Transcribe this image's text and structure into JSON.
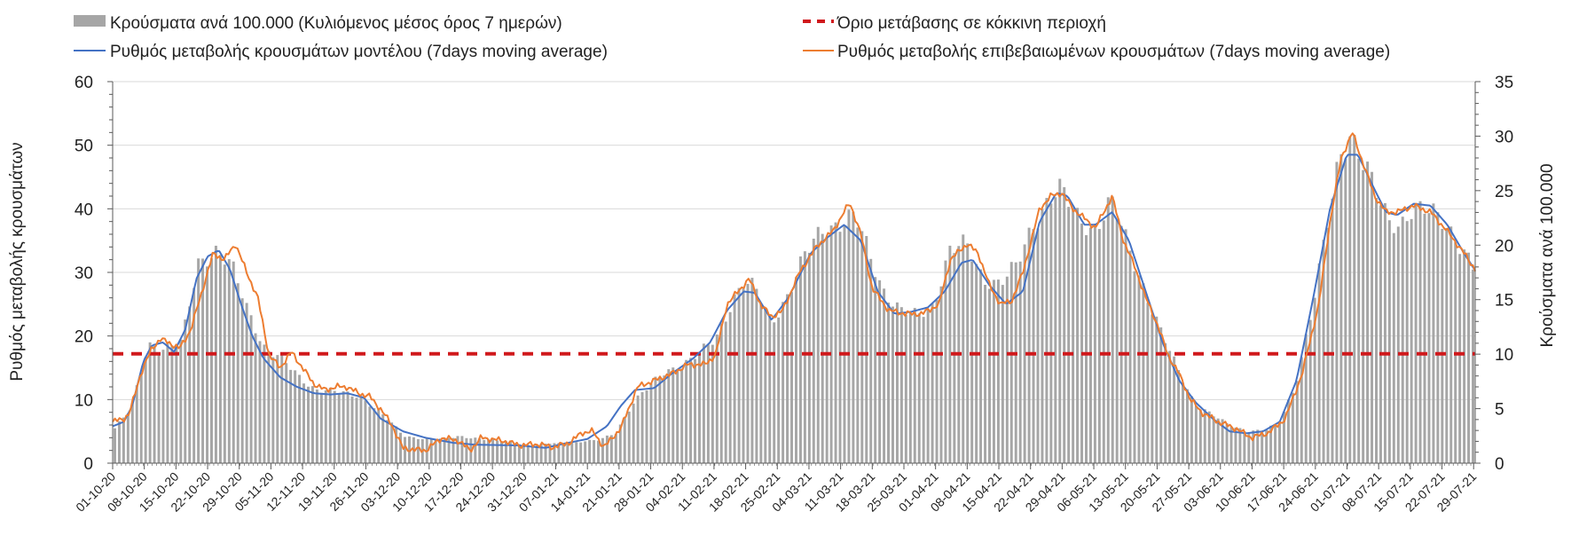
{
  "chart_data": {
    "type": "bar-line-combo",
    "title": "",
    "legend": [
      {
        "label": "Κρούσματα ανά 100.000 (Κυλιόμενος μέσος όρος 7 ημερών)",
        "kind": "bar",
        "color": "#a6a6a6"
      },
      {
        "label": "Όριο μετάβασης σε κόκκινη περιοχή",
        "kind": "dashed-line",
        "color": "#d0191c"
      },
      {
        "label": "Ρυθμός μεταβολής κρουσμάτων μοντέλου (7days moving average)",
        "kind": "line",
        "color": "#4472c4"
      },
      {
        "label": "Ρυθμός μεταβολής επιβεβαιωμένων κρουσμάτων (7days moving average)",
        "kind": "line",
        "color": "#ed7d31"
      }
    ],
    "y_left": {
      "title": "Ρυθμός μεταβολής κρουσμάτων",
      "ylim": [
        0,
        60
      ],
      "ticks": [
        "0",
        "10",
        "20",
        "30",
        "40",
        "50",
        "60"
      ]
    },
    "y_right": {
      "title": "Κρούσματα ανά 100.000",
      "ylim": [
        0,
        35
      ],
      "ticks": [
        "0",
        "5",
        "10",
        "15",
        "20",
        "25",
        "30",
        "35"
      ]
    },
    "x_tick_labels": [
      "01-10-20",
      "08-10-20",
      "15-10-20",
      "22-10-20",
      "29-10-20",
      "05-11-20",
      "12-11-20",
      "19-11-20",
      "26-11-20",
      "03-12-20",
      "10-12-20",
      "17-12-20",
      "24-12-20",
      "31-12-20",
      "07-01-21",
      "14-01-21",
      "21-01-21",
      "28-01-21",
      "04-02-21",
      "11-02-21",
      "18-02-21",
      "25-02-21",
      "04-03-21",
      "11-03-21",
      "18-03-21",
      "25-03-21",
      "01-04-21",
      "08-04-21",
      "15-04-21",
      "22-04-21",
      "29-04-21",
      "06-05-21",
      "13-05-21",
      "20-05-21",
      "27-05-21",
      "03-06-21",
      "10-06-21",
      "17-06-21",
      "24-06-21",
      "01-07-21",
      "08-07-21",
      "15-07-21",
      "22-07-21",
      "29-07-21"
    ],
    "days": 310,
    "red_threshold_left": 17.2,
    "model_rate_keypoints_left": [
      [
        0,
        5.8
      ],
      [
        4,
        6.5
      ],
      [
        7,
        9
      ],
      [
        11,
        16
      ],
      [
        14,
        18.5
      ],
      [
        18,
        19
      ],
      [
        22,
        17.5
      ],
      [
        26,
        21
      ],
      [
        30,
        29
      ],
      [
        34,
        32.5
      ],
      [
        38,
        33.5
      ],
      [
        42,
        30.5
      ],
      [
        46,
        25
      ],
      [
        50,
        20
      ],
      [
        54,
        16.5
      ],
      [
        60,
        13.5
      ],
      [
        66,
        12
      ],
      [
        72,
        11
      ],
      [
        78,
        10.8
      ],
      [
        84,
        11
      ],
      [
        90,
        10.3
      ],
      [
        96,
        7
      ],
      [
        104,
        5
      ],
      [
        112,
        4
      ],
      [
        122,
        3.2
      ],
      [
        130,
        2.9
      ],
      [
        145,
        2.8
      ],
      [
        155,
        2.4
      ],
      [
        162,
        3.1
      ],
      [
        170,
        3.8
      ],
      [
        177,
        5.8
      ],
      [
        182,
        9
      ],
      [
        187,
        11.5
      ],
      [
        194,
        11.8
      ],
      [
        200,
        14
      ],
      [
        208,
        16.5
      ],
      [
        214,
        19
      ],
      [
        220,
        24
      ],
      [
        226,
        27
      ],
      [
        230,
        26.8
      ],
      [
        236,
        22.5
      ],
      [
        242,
        26
      ],
      [
        250,
        33
      ],
      [
        256,
        35.5
      ],
      [
        262,
        37.5
      ],
      [
        268,
        35
      ],
      [
        274,
        27
      ],
      [
        280,
        23.5
      ],
      [
        286,
        23.8
      ],
      [
        292,
        24.5
      ],
      [
        298,
        27
      ],
      [
        304,
        31.5
      ],
      [
        308,
        32
      ],
      [
        314,
        28
      ],
      [
        320,
        25
      ],
      [
        326,
        27
      ],
      [
        332,
        38
      ],
      [
        338,
        42.5
      ],
      [
        342,
        42
      ],
      [
        348,
        37.5
      ],
      [
        352,
        37.5
      ],
      [
        358,
        39.5
      ],
      [
        364,
        35
      ],
      [
        370,
        27
      ],
      [
        376,
        19
      ],
      [
        382,
        13
      ],
      [
        388,
        9.5
      ],
      [
        394,
        7
      ],
      [
        400,
        5
      ],
      [
        406,
        4.7
      ],
      [
        412,
        5
      ],
      [
        418,
        6.5
      ],
      [
        424,
        13
      ],
      [
        430,
        26
      ],
      [
        436,
        40
      ],
      [
        442,
        48.5
      ],
      [
        446,
        48.5
      ],
      [
        452,
        43
      ],
      [
        456,
        39.5
      ],
      [
        460,
        39
      ],
      [
        466,
        40.8
      ],
      [
        472,
        40.5
      ],
      [
        478,
        37.5
      ],
      [
        484,
        33
      ],
      [
        488,
        30.3
      ]
    ],
    "confirmed_rate_keypoints_left": [
      [
        0,
        6.5
      ],
      [
        4,
        7
      ],
      [
        6,
        7.8
      ],
      [
        10,
        14
      ],
      [
        14,
        18
      ],
      [
        17,
        19.5
      ],
      [
        20,
        19
      ],
      [
        24,
        18
      ],
      [
        28,
        21
      ],
      [
        32,
        27
      ],
      [
        36,
        33
      ],
      [
        40,
        32
      ],
      [
        44,
        34.5
      ],
      [
        48,
        30
      ],
      [
        52,
        26
      ],
      [
        56,
        17
      ],
      [
        60,
        15
      ],
      [
        64,
        17.5
      ],
      [
        68,
        15
      ],
      [
        72,
        12.5
      ],
      [
        76,
        11.5
      ],
      [
        80,
        12
      ],
      [
        84,
        12
      ],
      [
        88,
        11
      ],
      [
        92,
        10.5
      ],
      [
        96,
        8.5
      ],
      [
        100,
        6
      ],
      [
        104,
        2.3
      ],
      [
        112,
        2
      ],
      [
        118,
        4
      ],
      [
        124,
        3.5
      ],
      [
        128,
        2
      ],
      [
        132,
        4
      ],
      [
        140,
        3.5
      ],
      [
        146,
        2.8
      ],
      [
        152,
        3
      ],
      [
        158,
        2.5
      ],
      [
        164,
        3.3
      ],
      [
        168,
        4.8
      ],
      [
        172,
        5
      ],
      [
        176,
        2.5
      ],
      [
        182,
        5.5
      ],
      [
        188,
        12
      ],
      [
        194,
        13
      ],
      [
        200,
        14
      ],
      [
        206,
        15.5
      ],
      [
        212,
        15.5
      ],
      [
        216,
        17
      ],
      [
        220,
        25
      ],
      [
        224,
        27
      ],
      [
        228,
        29
      ],
      [
        232,
        25
      ],
      [
        236,
        23
      ],
      [
        240,
        24
      ],
      [
        246,
        30
      ],
      [
        252,
        34
      ],
      [
        258,
        36.5
      ],
      [
        264,
        41
      ],
      [
        268,
        36
      ],
      [
        272,
        27.5
      ],
      [
        278,
        24
      ],
      [
        284,
        23.5
      ],
      [
        290,
        23.5
      ],
      [
        296,
        25
      ],
      [
        300,
        32
      ],
      [
        306,
        34.5
      ],
      [
        310,
        33
      ],
      [
        314,
        28
      ],
      [
        318,
        25
      ],
      [
        322,
        25.5
      ],
      [
        326,
        30
      ],
      [
        332,
        40
      ],
      [
        336,
        42
      ],
      [
        340,
        42.5
      ],
      [
        344,
        40
      ],
      [
        348,
        38.5
      ],
      [
        352,
        37
      ],
      [
        358,
        42
      ],
      [
        362,
        35
      ],
      [
        366,
        31
      ],
      [
        370,
        26
      ],
      [
        374,
        22
      ],
      [
        378,
        17
      ],
      [
        382,
        14
      ],
      [
        386,
        10
      ],
      [
        390,
        8
      ],
      [
        396,
        6.5
      ],
      [
        402,
        5.5
      ],
      [
        408,
        4
      ],
      [
        414,
        4.8
      ],
      [
        420,
        7
      ],
      [
        426,
        14
      ],
      [
        432,
        25
      ],
      [
        436,
        38
      ],
      [
        440,
        48
      ],
      [
        444,
        52
      ],
      [
        448,
        47
      ],
      [
        452,
        42
      ],
      [
        456,
        39.5
      ],
      [
        460,
        39.5
      ],
      [
        466,
        40.5
      ],
      [
        472,
        39.5
      ],
      [
        478,
        36.5
      ],
      [
        484,
        33
      ],
      [
        488,
        30.5
      ]
    ],
    "cases_per_100k_keypoints_right": [
      [
        0,
        3.2
      ],
      [
        6,
        5
      ],
      [
        12,
        11
      ],
      [
        18,
        10.5
      ],
      [
        24,
        11
      ],
      [
        30,
        18.5
      ],
      [
        36,
        19.5
      ],
      [
        42,
        18
      ],
      [
        48,
        14
      ],
      [
        54,
        10.5
      ],
      [
        60,
        9.5
      ],
      [
        66,
        8
      ],
      [
        72,
        6.8
      ],
      [
        80,
        6.5
      ],
      [
        88,
        6.2
      ],
      [
        96,
        4.5
      ],
      [
        104,
        2.5
      ],
      [
        112,
        2.2
      ],
      [
        118,
        2.2
      ],
      [
        124,
        2.5
      ],
      [
        132,
        2.2
      ],
      [
        140,
        2
      ],
      [
        146,
        1.8
      ],
      [
        150,
        1.6
      ],
      [
        156,
        1.8
      ],
      [
        162,
        1.8
      ],
      [
        168,
        2
      ],
      [
        174,
        2.1
      ],
      [
        180,
        2.8
      ],
      [
        186,
        5.5
      ],
      [
        192,
        7
      ],
      [
        198,
        8.5
      ],
      [
        204,
        9
      ],
      [
        210,
        10
      ],
      [
        216,
        11.5
      ],
      [
        222,
        15
      ],
      [
        226,
        16.5
      ],
      [
        230,
        16
      ],
      [
        236,
        13
      ],
      [
        242,
        15.5
      ],
      [
        248,
        19
      ],
      [
        254,
        21.5
      ],
      [
        260,
        22
      ],
      [
        266,
        22.5
      ],
      [
        270,
        20
      ],
      [
        276,
        16
      ],
      [
        282,
        14
      ],
      [
        288,
        13.5
      ],
      [
        294,
        14.5
      ],
      [
        300,
        19.5
      ],
      [
        306,
        20
      ],
      [
        312,
        17
      ],
      [
        318,
        16.5
      ],
      [
        324,
        18
      ],
      [
        330,
        22
      ],
      [
        336,
        24.5
      ],
      [
        340,
        25
      ],
      [
        346,
        22.5
      ],
      [
        352,
        21.5
      ],
      [
        358,
        24
      ],
      [
        364,
        20
      ],
      [
        370,
        16
      ],
      [
        376,
        12
      ],
      [
        382,
        8.5
      ],
      [
        388,
        5.5
      ],
      [
        394,
        4.5
      ],
      [
        400,
        3.5
      ],
      [
        406,
        3
      ],
      [
        412,
        3
      ],
      [
        418,
        3.5
      ],
      [
        424,
        7
      ],
      [
        430,
        14
      ],
      [
        436,
        22
      ],
      [
        440,
        28
      ],
      [
        444,
        30.5
      ],
      [
        450,
        27
      ],
      [
        454,
        24
      ],
      [
        458,
        22
      ],
      [
        462,
        22
      ],
      [
        466,
        23.5
      ],
      [
        472,
        23
      ],
      [
        478,
        22
      ],
      [
        484,
        20
      ],
      [
        488,
        18
      ]
    ]
  }
}
